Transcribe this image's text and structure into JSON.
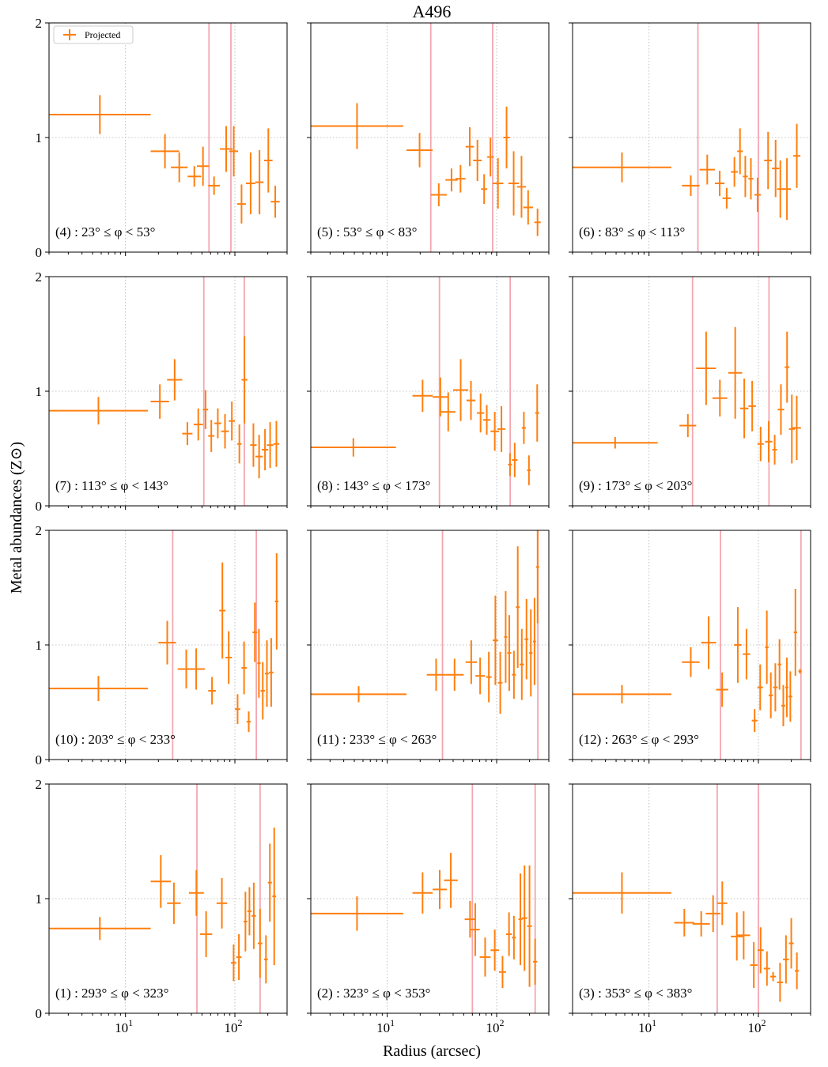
{
  "chart_data": {
    "type": "scatter",
    "title": "A496",
    "xlabel": "Radius (arcsec)",
    "ylabel": "Metal abundances (Z⊙)",
    "xscale": "log",
    "xlim": [
      2,
      300
    ],
    "ylim": [
      0,
      2
    ],
    "yticks": [
      "0",
      "1",
      "2"
    ],
    "xticks": [
      {
        "value": 10,
        "base": "10",
        "exp": "1"
      },
      {
        "value": 100,
        "base": "10",
        "exp": "2"
      }
    ],
    "legend": {
      "label": "Projected",
      "position": "top-left"
    },
    "series_color": "#ff7f0e",
    "vline_color": "#f4a6b0",
    "panels": [
      {
        "label": "(4) : 23° ≤ φ < 53°",
        "vlines": [
          58,
          92
        ],
        "points": [
          [
            2,
            17,
            1.2,
            0.17
          ],
          [
            17,
            31,
            0.88,
            0.15
          ],
          [
            26,
            37,
            0.74,
            0.13
          ],
          [
            37,
            49,
            0.66,
            0.09
          ],
          [
            45,
            58,
            0.75,
            0.17
          ],
          [
            57,
            73,
            0.58,
            0.08
          ],
          [
            73,
            95,
            0.9,
            0.2
          ],
          [
            89,
            107,
            0.88,
            0.22
          ],
          [
            105,
            126,
            0.42,
            0.17
          ],
          [
            126,
            154,
            0.6,
            0.27
          ],
          [
            154,
            183,
            0.61,
            0.28
          ],
          [
            185,
            221,
            0.8,
            0.28
          ],
          [
            213,
            257,
            0.44,
            0.14
          ]
        ]
      },
      {
        "label": "(5) : 53° ≤ φ < 83°",
        "vlines": [
          25,
          92
        ],
        "points": [
          [
            2,
            14,
            1.1,
            0.2
          ],
          [
            15,
            26,
            0.89,
            0.15
          ],
          [
            25,
            35,
            0.5,
            0.1
          ],
          [
            34,
            44,
            0.63,
            0.1
          ],
          [
            42,
            52,
            0.64,
            0.12
          ],
          [
            52,
            62,
            0.92,
            0.17
          ],
          [
            61,
            73,
            0.8,
            0.18
          ],
          [
            72,
            82,
            0.55,
            0.13
          ],
          [
            82,
            94,
            0.83,
            0.17
          ],
          [
            92,
            115,
            0.6,
            0.22
          ],
          [
            115,
            132,
            1.0,
            0.27
          ],
          [
            128,
            160,
            0.6,
            0.28
          ],
          [
            154,
            185,
            0.57,
            0.27
          ],
          [
            175,
            215,
            0.39,
            0.15
          ],
          [
            221,
            253,
            0.26,
            0.12
          ]
        ]
      },
      {
        "label": "(6) : 83° ≤ φ < 113°",
        "vlines": [
          28,
          100
        ],
        "points": [
          [
            2,
            16,
            0.74,
            0.13
          ],
          [
            20,
            29,
            0.58,
            0.09
          ],
          [
            29,
            40,
            0.72,
            0.13
          ],
          [
            40,
            49,
            0.6,
            0.11
          ],
          [
            47,
            56,
            0.47,
            0.09
          ],
          [
            56,
            65,
            0.7,
            0.13
          ],
          [
            64,
            72,
            0.88,
            0.2
          ],
          [
            72,
            80,
            0.66,
            0.18
          ],
          [
            81,
            90,
            0.64,
            0.18
          ],
          [
            92,
            105,
            0.5,
            0.15
          ],
          [
            113,
            133,
            0.8,
            0.25
          ],
          [
            133,
            155,
            0.73,
            0.25
          ],
          [
            148,
            170,
            0.55,
            0.25
          ],
          [
            168,
            198,
            0.55,
            0.27
          ],
          [
            208,
            242,
            0.84,
            0.28
          ]
        ]
      },
      {
        "label": "(7) : 113° ≤ φ < 143°",
        "vlines": [
          52,
          122
        ],
        "points": [
          [
            2,
            16,
            0.83,
            0.12
          ],
          [
            17,
            25,
            0.91,
            0.15
          ],
          [
            24,
            33,
            1.1,
            0.18
          ],
          [
            33,
            41,
            0.63,
            0.1
          ],
          [
            42,
            51,
            0.71,
            0.14
          ],
          [
            51,
            57,
            0.84,
            0.17
          ],
          [
            57,
            65,
            0.61,
            0.14
          ],
          [
            65,
            75,
            0.72,
            0.13
          ],
          [
            75,
            88,
            0.65,
            0.15
          ],
          [
            88,
            100,
            0.74,
            0.17
          ],
          [
            105,
            115,
            0.54,
            0.17
          ],
          [
            115,
            130,
            1.1,
            0.38
          ],
          [
            138,
            158,
            0.53,
            0.19
          ],
          [
            154,
            180,
            0.43,
            0.19
          ],
          [
            176,
            202,
            0.49,
            0.18
          ],
          [
            196,
            225,
            0.53,
            0.2
          ],
          [
            225,
            255,
            0.54,
            0.2
          ]
        ]
      },
      {
        "label": "(8) : 143° ≤ φ < 173°",
        "vlines": [
          30,
          133
        ],
        "points": [
          [
            2,
            12,
            0.51,
            0.08
          ],
          [
            17,
            26,
            0.96,
            0.14
          ],
          [
            26,
            36,
            0.95,
            0.17
          ],
          [
            31,
            42,
            0.82,
            0.17
          ],
          [
            40,
            55,
            1.01,
            0.27
          ],
          [
            53,
            64,
            0.92,
            0.17
          ],
          [
            66,
            77,
            0.81,
            0.17
          ],
          [
            75,
            88,
            0.75,
            0.13
          ],
          [
            88,
            105,
            0.65,
            0.17
          ],
          [
            102,
            120,
            0.67,
            0.2
          ],
          [
            127,
            138,
            0.36,
            0.1
          ],
          [
            138,
            155,
            0.4,
            0.15
          ],
          [
            170,
            185,
            0.68,
            0.14
          ],
          [
            190,
            205,
            0.31,
            0.13
          ],
          [
            225,
            245,
            0.81,
            0.25
          ]
        ]
      },
      {
        "label": "(9) : 173° ≤ φ < 203°",
        "vlines": [
          25,
          125
        ],
        "points": [
          [
            2,
            12,
            0.55,
            0.05
          ],
          [
            19,
            27,
            0.7,
            0.1
          ],
          [
            27,
            41,
            1.2,
            0.32
          ],
          [
            38,
            52,
            0.94,
            0.16
          ],
          [
            53,
            71,
            1.16,
            0.4
          ],
          [
            68,
            81,
            0.85,
            0.26
          ],
          [
            81,
            95,
            0.87,
            0.22
          ],
          [
            98,
            112,
            0.54,
            0.15
          ],
          [
            115,
            134,
            0.56,
            0.18
          ],
          [
            134,
            148,
            0.49,
            0.13
          ],
          [
            150,
            172,
            0.84,
            0.22
          ],
          [
            174,
            192,
            1.21,
            0.31
          ],
          [
            190,
            215,
            0.67,
            0.3
          ],
          [
            205,
            245,
            0.68,
            0.28
          ]
        ]
      },
      {
        "label": "(10) : 203° ≤ φ < 233°",
        "vlines": [
          27,
          157
        ],
        "points": [
          [
            2,
            16,
            0.62,
            0.11
          ],
          [
            20,
            29,
            1.02,
            0.19
          ],
          [
            30,
            43,
            0.79,
            0.17
          ],
          [
            37,
            53,
            0.79,
            0.18
          ],
          [
            57,
            67,
            0.6,
            0.12
          ],
          [
            72,
            82,
            1.3,
            0.42
          ],
          [
            82,
            94,
            0.89,
            0.23
          ],
          [
            100,
            112,
            0.44,
            0.13
          ],
          [
            115,
            128,
            0.8,
            0.23
          ],
          [
            128,
            140,
            0.33,
            0.09
          ],
          [
            145,
            160,
            1.11,
            0.26
          ],
          [
            160,
            172,
            0.84,
            0.3
          ],
          [
            172,
            188,
            0.6,
            0.25
          ],
          [
            188,
            205,
            0.75,
            0.29
          ],
          [
            205,
            225,
            0.76,
            0.3
          ],
          [
            232,
            250,
            1.38,
            0.42
          ]
        ]
      },
      {
        "label": "(11) : 233° ≤ φ < 263°",
        "vlines": [
          32,
          238
        ],
        "points": [
          [
            2,
            15,
            0.57,
            0.07
          ],
          [
            23,
            34,
            0.74,
            0.14
          ],
          [
            34,
            50,
            0.74,
            0.14
          ],
          [
            52,
            66,
            0.85,
            0.19
          ],
          [
            64,
            78,
            0.73,
            0.16
          ],
          [
            80,
            90,
            0.72,
            0.22
          ],
          [
            92,
            103,
            1.04,
            0.39
          ],
          [
            103,
            113,
            0.67,
            0.27
          ],
          [
            117,
            125,
            1.07,
            0.4
          ],
          [
            125,
            136,
            0.93,
            0.33
          ],
          [
            138,
            150,
            0.74,
            0.21
          ],
          [
            150,
            162,
            1.33,
            0.53
          ],
          [
            162,
            178,
            0.83,
            0.31
          ],
          [
            180,
            195,
            1.05,
            0.35
          ],
          [
            198,
            213,
            0.93,
            0.38
          ],
          [
            215,
            229,
            1.03,
            0.38
          ],
          [
            229,
            245,
            1.68,
            0.49
          ]
        ]
      },
      {
        "label": "(12) : 263° ≤ φ < 293°",
        "vlines": [
          45,
          245
        ],
        "points": [
          [
            2,
            16,
            0.57,
            0.08
          ],
          [
            20,
            29,
            0.85,
            0.13
          ],
          [
            30,
            41,
            1.02,
            0.23
          ],
          [
            41,
            53,
            0.61,
            0.15
          ],
          [
            60,
            70,
            1.0,
            0.33
          ],
          [
            72,
            84,
            0.92,
            0.22
          ],
          [
            87,
            98,
            0.34,
            0.1
          ],
          [
            98,
            110,
            0.63,
            0.2
          ],
          [
            115,
            124,
            0.98,
            0.32
          ],
          [
            124,
            136,
            0.56,
            0.2
          ],
          [
            136,
            150,
            0.63,
            0.21
          ],
          [
            150,
            162,
            0.83,
            0.22
          ],
          [
            162,
            176,
            0.47,
            0.18
          ],
          [
            176,
            188,
            0.63,
            0.26
          ],
          [
            188,
            204,
            0.55,
            0.22
          ],
          [
            210,
            226,
            1.11,
            0.38
          ],
          [
            232,
            248,
            0.77,
            0.02
          ]
        ]
      },
      {
        "label": "(1) : 293° ≤ φ < 323°",
        "vlines": [
          45,
          170
        ],
        "points": [
          [
            2,
            17,
            0.74,
            0.1
          ],
          [
            17,
            26,
            1.15,
            0.23
          ],
          [
            24,
            32,
            0.96,
            0.18
          ],
          [
            38,
            52,
            1.05,
            0.2
          ],
          [
            48,
            62,
            0.69,
            0.2
          ],
          [
            68,
            85,
            0.96,
            0.22
          ],
          [
            92,
            103,
            0.44,
            0.16
          ],
          [
            103,
            115,
            0.49,
            0.2
          ],
          [
            120,
            130,
            0.8,
            0.26
          ],
          [
            130,
            142,
            0.89,
            0.21
          ],
          [
            142,
            156,
            0.85,
            0.29
          ],
          [
            162,
            178,
            0.61,
            0.3
          ],
          [
            185,
            200,
            0.47,
            0.21
          ],
          [
            200,
            218,
            1.14,
            0.34
          ],
          [
            220,
            238,
            1.02,
            0.6
          ]
        ]
      },
      {
        "label": "(2) : 323° ≤ φ < 353°",
        "vlines": [
          60,
          225
        ],
        "points": [
          [
            2,
            14,
            0.87,
            0.15
          ],
          [
            17,
            26,
            1.05,
            0.18
          ],
          [
            26,
            35,
            1.08,
            0.17
          ],
          [
            33,
            44,
            1.16,
            0.24
          ],
          [
            51,
            64,
            0.82,
            0.16
          ],
          [
            58,
            70,
            0.73,
            0.23
          ],
          [
            70,
            88,
            0.49,
            0.17
          ],
          [
            88,
            105,
            0.55,
            0.18
          ],
          [
            105,
            122,
            0.36,
            0.14
          ],
          [
            122,
            138,
            0.69,
            0.19
          ],
          [
            138,
            150,
            0.66,
            0.19
          ],
          [
            158,
            172,
            0.82,
            0.4
          ],
          [
            170,
            190,
            0.83,
            0.46
          ],
          [
            190,
            210,
            0.76,
            0.53
          ],
          [
            215,
            235,
            0.45,
            0.2
          ]
        ]
      },
      {
        "label": "(3) : 353° ≤ φ < 383°",
        "vlines": [
          42,
          100
        ],
        "points": [
          [
            2,
            16,
            1.05,
            0.18
          ],
          [
            17,
            26,
            0.79,
            0.12
          ],
          [
            25,
            36,
            0.78,
            0.11
          ],
          [
            33,
            45,
            0.87,
            0.16
          ],
          [
            42,
            52,
            0.96,
            0.19
          ],
          [
            56,
            72,
            0.67,
            0.21
          ],
          [
            64,
            84,
            0.68,
            0.21
          ],
          [
            84,
            98,
            0.42,
            0.2
          ],
          [
            98,
            112,
            0.55,
            0.2
          ],
          [
            112,
            128,
            0.39,
            0.15
          ],
          [
            128,
            145,
            0.32,
            0.04
          ],
          [
            148,
            168,
            0.27,
            0.17
          ],
          [
            168,
            190,
            0.47,
            0.21
          ],
          [
            190,
            210,
            0.61,
            0.22
          ],
          [
            215,
            235,
            0.37,
            0.16
          ]
        ]
      }
    ]
  }
}
